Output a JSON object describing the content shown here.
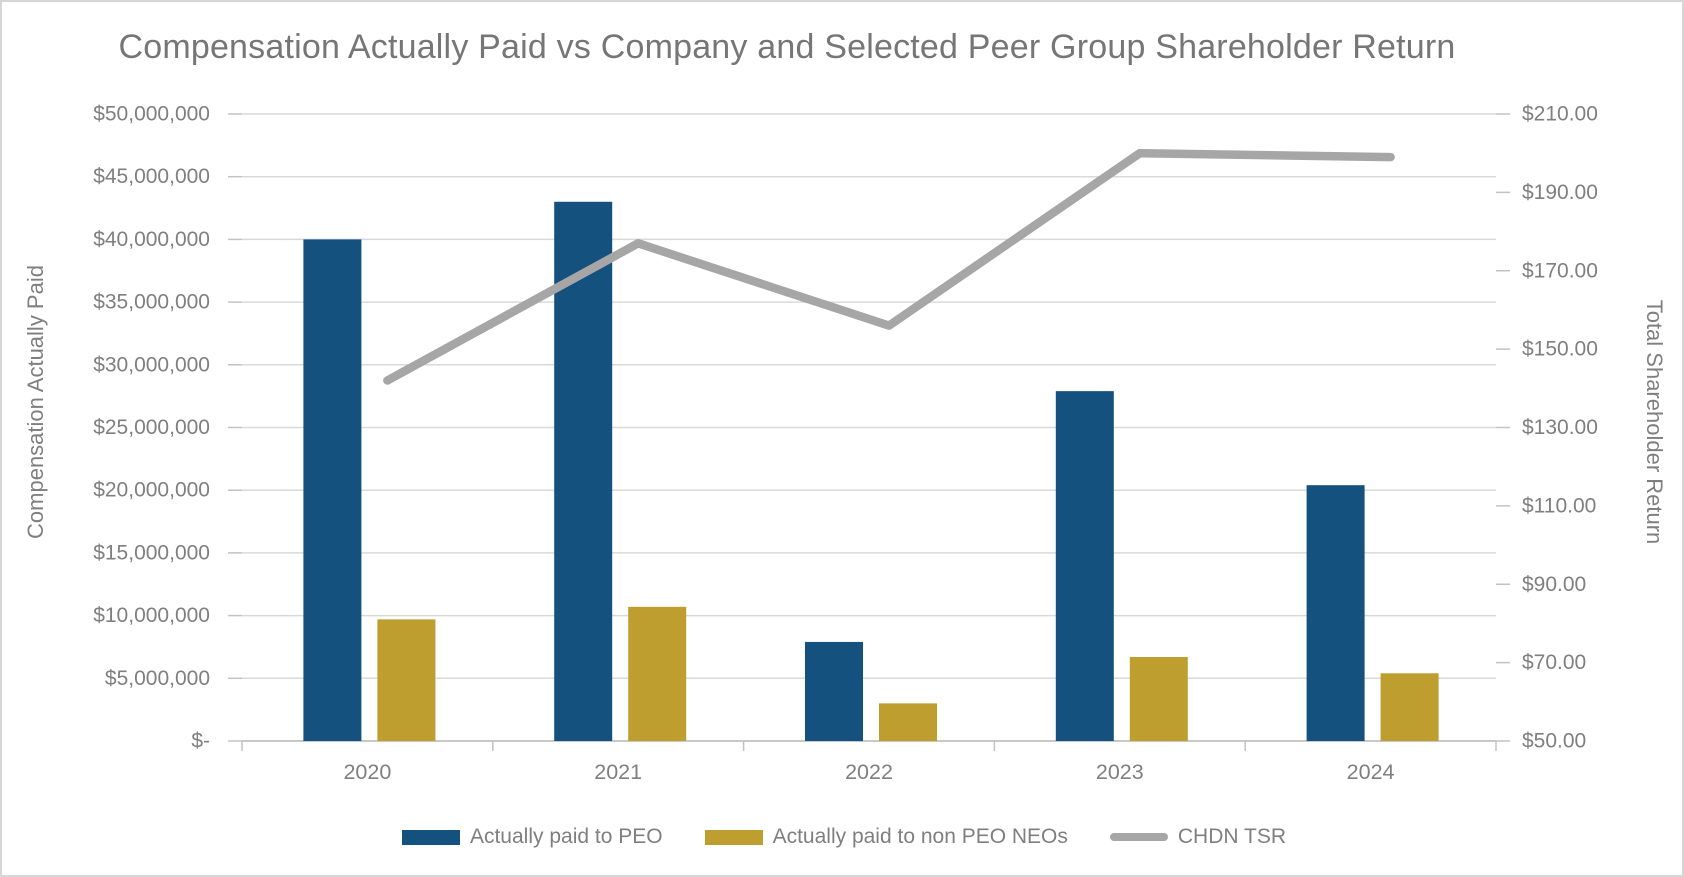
{
  "chart_data": {
    "type": "bar",
    "subtype": "grouped-bars-with-line-combo",
    "title": "Compensation Actually Paid vs Company and Selected Peer Group Shareholder Return",
    "categories": [
      "2020",
      "2021",
      "2022",
      "2023",
      "2024"
    ],
    "series": [
      {
        "name": "Actually paid to PEO",
        "type": "bar",
        "axis": "left",
        "color": "#15517e",
        "values": [
          40000000,
          43000000,
          7900000,
          27900000,
          20400000
        ]
      },
      {
        "name": "Actually paid to non PEO NEOs",
        "type": "bar",
        "axis": "left",
        "color": "#bd9e2e",
        "values": [
          9700000,
          10700000,
          3000000,
          6700000,
          5400000
        ]
      },
      {
        "name": "CHDN TSR",
        "type": "line",
        "axis": "right",
        "color": "#a6a6a6",
        "values": [
          142,
          177,
          156,
          200,
          199
        ]
      }
    ],
    "left_axis": {
      "title": "Compensation Actually Paid",
      "min": 0,
      "max": 50000000,
      "step": 5000000,
      "tick_labels": [
        "$50,000,000",
        "$45,000,000",
        "$40,000,000",
        "$35,000,000",
        "$30,000,000",
        "$25,000,000",
        "$20,000,000",
        "$15,000,000",
        "$10,000,000",
        "$5,000,000",
        "$-"
      ]
    },
    "right_axis": {
      "title": "Total Shareholder Return",
      "min": 50,
      "max": 210,
      "step": 20,
      "tick_labels": [
        "$210.00",
        "$190.00",
        "$170.00",
        "$150.00",
        "$130.00",
        "$110.00",
        "$90.00",
        "$70.00",
        "$50.00"
      ]
    },
    "legend_position": "bottom",
    "grid": true,
    "colors": {
      "gridline": "#d9d9d9",
      "axis_line": "#c8c8c8",
      "tick_mark": "#c2c2c2",
      "label_text": "#7f7f7f",
      "title_text": "#767676"
    }
  }
}
